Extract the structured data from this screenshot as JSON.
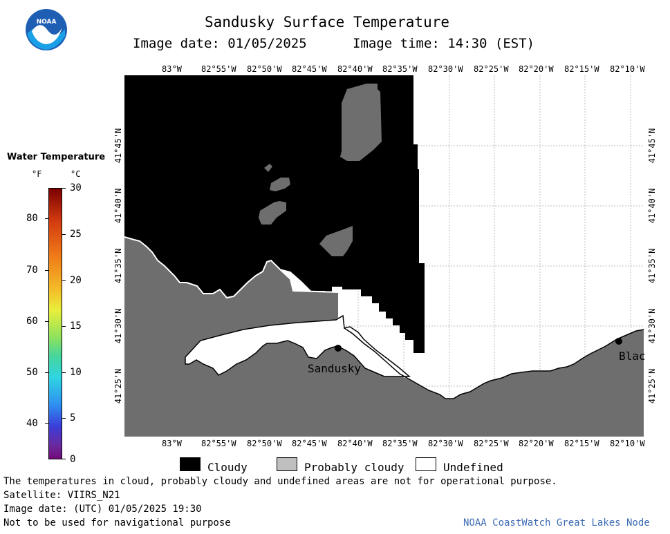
{
  "title": "Sandusky Surface Temperature",
  "image_date_line": "Image date: 01/05/2025",
  "image_time_line": "Image time: 14:30 (EST)",
  "colors": {
    "cloudy": "#000000",
    "probably_cloudy": "#6e6e6e",
    "undefined": "#ffffff",
    "grid": "#bdbdbd",
    "credit": "#3d6bb3"
  },
  "longitude_labels": [
    "83°W",
    "82°55'W",
    "82°50'W",
    "82°45'W",
    "82°40'W",
    "82°35'W",
    "82°30'W",
    "82°25'W",
    "82°20'W",
    "82°15'W",
    "82°10'W"
  ],
  "latitude_labels": [
    "41°45'N",
    "41°40'N",
    "41°35'N",
    "41°30'N",
    "41°25'N"
  ],
  "places": [
    {
      "name": "Sandusky"
    },
    {
      "name": "Blac"
    }
  ],
  "temperature_legend": {
    "title": "Water Temperature",
    "unit_f": "°F",
    "unit_c": "°C",
    "fahrenheit_ticks": [
      "80",
      "70",
      "60",
      "50",
      "40"
    ],
    "celsius_ticks": [
      "30",
      "25",
      "20",
      "15",
      "10",
      "5",
      "0"
    ]
  },
  "class_legend": [
    "Cloudy",
    "Probably cloudy",
    "Undefined"
  ],
  "footer": {
    "disclaimer": "The temperatures in cloud, probably cloudy and undefined areas are not for operational purpose.",
    "satellite": "Satellite: VIIRS_N21",
    "utc_date": "Image date: (UTC) 01/05/2025  19:30",
    "nav_warning": "Not to be used for navigational purpose",
    "credit": "NOAA CoastWatch Great Lakes Node"
  }
}
